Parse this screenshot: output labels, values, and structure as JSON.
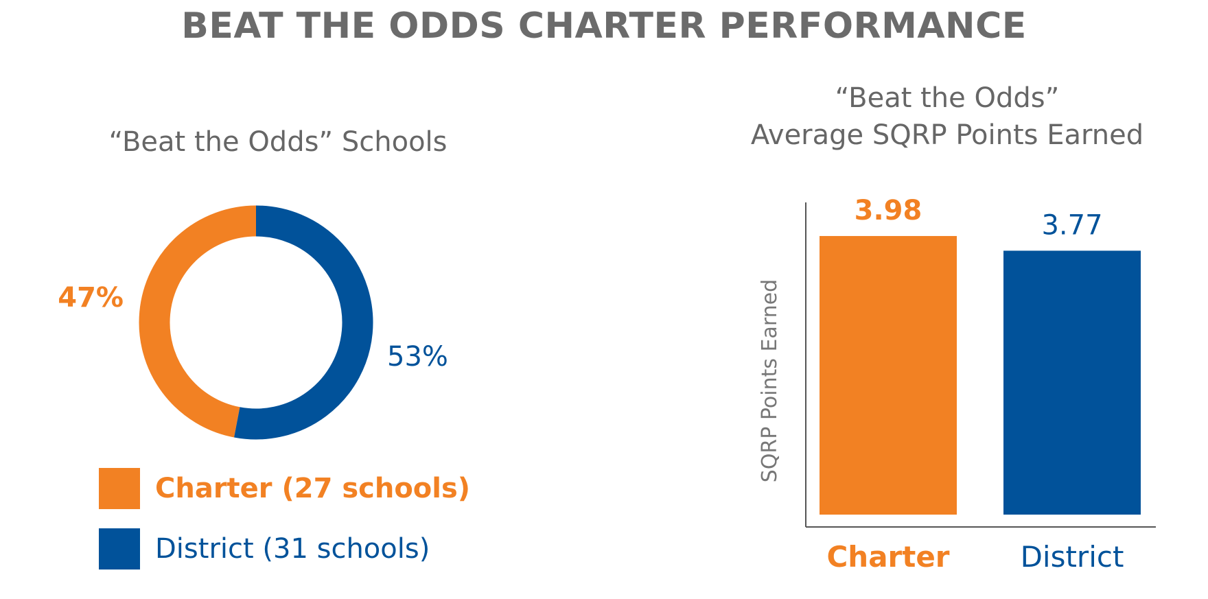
{
  "title": "BEAT THE ODDS CHARTER PERFORMANCE",
  "colors": {
    "orange": "#f28123",
    "blue": "#01529a",
    "title_gray": "#6b6b6b",
    "axis_gray": "#555555"
  },
  "chart_data": [
    {
      "type": "pie",
      "title": "“Beat the Odds” Schools",
      "slices": [
        {
          "label": "Charter (27 schools)",
          "value": 47,
          "value_label": "47%",
          "color": "#f28123",
          "bold": true
        },
        {
          "label": "District (31 schools)",
          "value": 53,
          "value_label": "53%",
          "color": "#01529a",
          "bold": false
        }
      ],
      "donut": true,
      "legend_position": "bottom"
    },
    {
      "type": "bar",
      "title_lines": [
        "“Beat the Odds”",
        "Average SQRP Points Earned"
      ],
      "categories": [
        "Charter",
        "District"
      ],
      "values": [
        3.98,
        3.77
      ],
      "value_labels": [
        "3.98",
        "3.77"
      ],
      "colors": [
        "#f28123",
        "#01529a"
      ],
      "bold": [
        true,
        false
      ],
      "xlabel": "",
      "ylabel": "SQRP Points Earned",
      "ylim": [
        0,
        4.46
      ],
      "grid": false
    }
  ]
}
